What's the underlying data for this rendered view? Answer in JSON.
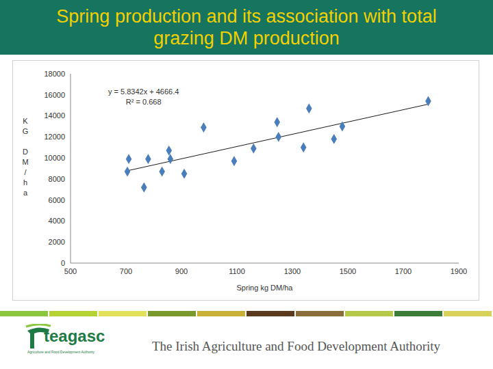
{
  "chart_data": {
    "type": "scatter",
    "title": "Spring production and its association with total grazing DM production",
    "x_label": "Spring kg DM/ha",
    "y_label": "KG DM/ha",
    "x": [
      705,
      710,
      765,
      780,
      830,
      855,
      860,
      910,
      980,
      1090,
      1160,
      1245,
      1250,
      1340,
      1360,
      1450,
      1480,
      1790
    ],
    "values": [
      8700,
      9900,
      7200,
      9900,
      8700,
      10700,
      9900,
      8500,
      12900,
      9700,
      10900,
      13400,
      12000,
      11000,
      14700,
      11800,
      13000,
      15400
    ],
    "color": "#4a7ebb",
    "marker": "diamond",
    "xlim": [
      500,
      1900
    ],
    "xticks": [
      500,
      700,
      900,
      1100,
      1300,
      1500,
      1700,
      1900
    ],
    "ylim": [
      0,
      18000
    ],
    "yticks": [
      0,
      2000,
      4000,
      6000,
      8000,
      10000,
      12000,
      14000,
      16000,
      18000
    ],
    "grid": false,
    "annotations": [
      "y = 5.8342x + 4666.4",
      "R² = 0.668"
    ],
    "trendline": {
      "x": [
        705,
        1790
      ],
      "values": [
        8780,
        15110
      ],
      "color": "#1a1a1a"
    }
  },
  "footer": {
    "logo": "teagasc",
    "logo_subtitle": "Agriculture and Food Development Authority",
    "tagline": "The Irish Agriculture and Food Development Authority"
  }
}
